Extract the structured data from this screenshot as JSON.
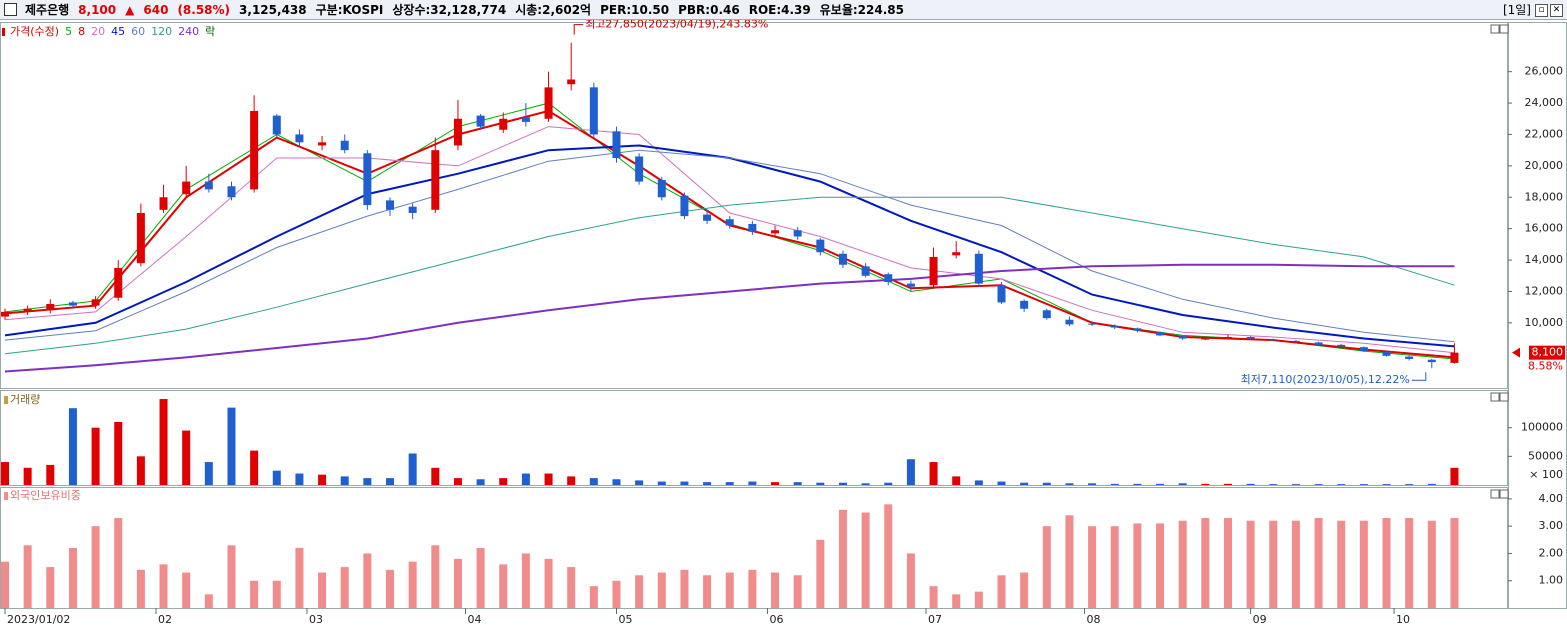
{
  "header": {
    "items": [
      {
        "text": "제주은행",
        "color": "#000000"
      },
      {
        "text": "8,100",
        "color": "#e00000"
      },
      {
        "text": "▲",
        "color": "#e00000"
      },
      {
        "text": "640",
        "color": "#e00000"
      },
      {
        "text": "(8.58%)",
        "color": "#e00000"
      },
      {
        "text": "3,125,438",
        "color": "#000000"
      },
      {
        "text": "구분:KOSPI",
        "color": "#000000"
      },
      {
        "text": "상장수:32,128,774",
        "color": "#000000"
      },
      {
        "text": "시총:2,602억",
        "color": "#000000"
      },
      {
        "text": "PER:10.50",
        "color": "#000000"
      },
      {
        "text": "PBR:0.46",
        "color": "#000000"
      },
      {
        "text": "ROE:4.39",
        "color": "#000000"
      },
      {
        "text": "유보율:224.85",
        "color": "#000000"
      }
    ],
    "period": "[1일]"
  },
  "chart_data": [
    {
      "type": "candlestick",
      "price_label": "가격(수정)",
      "lock_label": "락",
      "up_color": "#e00000",
      "down_color": "#1f5fd0",
      "xlim": [
        0,
        193
      ],
      "x": [
        0,
        3,
        6,
        9,
        12,
        15,
        18,
        21,
        24,
        27,
        30,
        33,
        36,
        39,
        42,
        45,
        48,
        51,
        54,
        57,
        60,
        63,
        66,
        69,
        72,
        75,
        78,
        81,
        84,
        87,
        90,
        93,
        96,
        99,
        102,
        105,
        108,
        111,
        114,
        117,
        120,
        123,
        126,
        129,
        132,
        135,
        138,
        141,
        144,
        147,
        150,
        153,
        156,
        159,
        162,
        165,
        168,
        171,
        174,
        177,
        180,
        183,
        186,
        189,
        192
      ],
      "open": [
        10400,
        10700,
        10800,
        11300,
        11100,
        11600,
        13800,
        17200,
        18200,
        19000,
        18700,
        18500,
        23200,
        22000,
        21300,
        21600,
        20800,
        17800,
        17400,
        17200,
        21300,
        23200,
        22300,
        23100,
        23000,
        25200,
        25000,
        22200,
        20600,
        19100,
        18100,
        16900,
        16600,
        16300,
        15700,
        15900,
        15300,
        14400,
        13600,
        13100,
        12500,
        12400,
        14300,
        14400,
        12400,
        11400,
        10800,
        10200,
        9950,
        9800,
        9650,
        9400,
        9150,
        8950,
        9050,
        9100,
        8950,
        8850,
        8750,
        8600,
        8450,
        8150,
        7850,
        7650,
        7450
      ],
      "high": [
        10900,
        11100,
        11500,
        11400,
        11700,
        14000,
        17600,
        18800,
        20000,
        19500,
        19000,
        24500,
        23300,
        22300,
        21900,
        22000,
        21000,
        18000,
        17600,
        21800,
        24200,
        23300,
        23400,
        24000,
        26000,
        27850,
        25300,
        22500,
        20800,
        19300,
        18300,
        17200,
        16800,
        16500,
        16200,
        16100,
        15400,
        14600,
        13800,
        13200,
        12700,
        14800,
        15200,
        14600,
        12600,
        11500,
        10900,
        10400,
        10100,
        9900,
        9700,
        9450,
        9200,
        9100,
        9250,
        9150,
        9000,
        8900,
        8800,
        8650,
        8500,
        8200,
        7900,
        7700,
        8700
      ],
      "low": [
        10200,
        10500,
        10600,
        10900,
        10900,
        11400,
        13600,
        17000,
        18000,
        18300,
        17800,
        18300,
        21800,
        21200,
        21000,
        20800,
        17200,
        16800,
        16600,
        17000,
        21000,
        22300,
        22100,
        22500,
        22800,
        24800,
        21800,
        20200,
        18800,
        17800,
        16600,
        16300,
        16000,
        15600,
        15500,
        15300,
        14300,
        13500,
        12900,
        12400,
        12000,
        12200,
        14100,
        12300,
        11200,
        10700,
        10200,
        9800,
        9800,
        9600,
        9400,
        9150,
        8900,
        8900,
        9000,
        8950,
        8850,
        8700,
        8550,
        8450,
        8150,
        7850,
        7600,
        7110,
        7400
      ],
      "close": [
        10700,
        10900,
        11200,
        11100,
        11500,
        13500,
        17000,
        18000,
        19000,
        18500,
        18000,
        23500,
        22000,
        21500,
        21500,
        21000,
        17500,
        17200,
        17000,
        21000,
        23000,
        22500,
        23000,
        22800,
        25000,
        25500,
        22000,
        20500,
        19000,
        18000,
        16800,
        16500,
        16200,
        15800,
        15900,
        15500,
        14500,
        13700,
        13000,
        12600,
        12300,
        14200,
        14500,
        12500,
        11300,
        10900,
        10300,
        9900,
        9900,
        9700,
        9500,
        9200,
        9000,
        9000,
        9100,
        9000,
        8900,
        8800,
        8600,
        8500,
        8200,
        7900,
        7700,
        7500,
        8100
      ],
      "series": [
        {
          "name": "5",
          "color": "#00b000",
          "width": 1,
          "x": [
            0,
            12,
            24,
            36,
            48,
            60,
            72,
            84,
            96,
            108,
            120,
            132,
            144,
            156,
            168,
            180,
            192
          ],
          "values": [
            10700,
            11400,
            18500,
            22000,
            19000,
            22500,
            24000,
            19500,
            16300,
            14600,
            12000,
            12800,
            10000,
            9200,
            8900,
            8200,
            7700
          ]
        },
        {
          "name": "8",
          "color": "#e00000",
          "width": 2,
          "x": [
            0,
            12,
            24,
            36,
            48,
            60,
            72,
            84,
            96,
            108,
            120,
            132,
            144,
            156,
            168,
            180,
            192
          ],
          "values": [
            10600,
            11100,
            18000,
            21800,
            19500,
            22000,
            23500,
            20000,
            16200,
            14800,
            12200,
            12400,
            10000,
            9100,
            8900,
            8300,
            7800
          ]
        },
        {
          "name": "20",
          "color": "#d070c0",
          "width": 1,
          "x": [
            0,
            12,
            24,
            36,
            48,
            60,
            72,
            84,
            96,
            108,
            120,
            132,
            144,
            156,
            168,
            180,
            192
          ],
          "values": [
            10200,
            10700,
            15500,
            20500,
            20500,
            20000,
            22500,
            22000,
            17000,
            15500,
            13500,
            12800,
            10800,
            9400,
            9100,
            8700,
            8100
          ]
        },
        {
          "name": "45",
          "color": "#0018c0",
          "width": 2,
          "x": [
            0,
            12,
            24,
            36,
            48,
            60,
            72,
            84,
            96,
            108,
            120,
            132,
            144,
            156,
            168,
            180,
            192
          ],
          "values": [
            9200,
            10000,
            12600,
            15500,
            18200,
            19500,
            21000,
            21300,
            20500,
            19000,
            16500,
            14500,
            11800,
            10500,
            9700,
            9000,
            8500
          ]
        },
        {
          "name": "60",
          "color": "#6080c0",
          "width": 1,
          "x": [
            0,
            12,
            24,
            36,
            48,
            60,
            72,
            84,
            96,
            108,
            120,
            132,
            144,
            156,
            168,
            180,
            192
          ],
          "values": [
            8900,
            9500,
            12000,
            14800,
            16800,
            18500,
            20300,
            21000,
            20500,
            19500,
            17500,
            16200,
            13300,
            11500,
            10300,
            9400,
            8800
          ]
        },
        {
          "name": "120",
          "color": "#30a090",
          "width": 1,
          "x": [
            0,
            12,
            24,
            36,
            48,
            60,
            72,
            84,
            96,
            108,
            120,
            132,
            144,
            156,
            168,
            180,
            192
          ],
          "values": [
            8030,
            8700,
            9600,
            11000,
            12500,
            14000,
            15500,
            16700,
            17500,
            18000,
            18000,
            18000,
            17000,
            16000,
            15000,
            14200,
            12400
          ]
        },
        {
          "name": "240",
          "color": "#8030c0",
          "width": 2,
          "x": [
            0,
            12,
            24,
            36,
            48,
            60,
            72,
            84,
            96,
            108,
            120,
            132,
            144,
            156,
            168,
            180,
            192
          ],
          "values": [
            6900,
            7300,
            7800,
            8400,
            9000,
            10000,
            10800,
            11500,
            12000,
            12500,
            12800,
            13300,
            13600,
            13700,
            13700,
            13600,
            13600
          ]
        }
      ],
      "ylim": [
        5850,
        29100
      ],
      "yticks": [
        {
          "value": 10000,
          "label": "10,000"
        },
        {
          "value": 12000,
          "label": "12,000"
        },
        {
          "value": 14000,
          "label": "14,000"
        },
        {
          "value": 16000,
          "label": "16,000"
        },
        {
          "value": 18000,
          "label": "18,000"
        },
        {
          "value": 20000,
          "label": "20,000"
        },
        {
          "value": 22000,
          "label": "22,000"
        },
        {
          "value": 24000,
          "label": "24,000"
        },
        {
          "value": 26000,
          "label": "26,000"
        }
      ],
      "high_annotation": "최고27,850(2023/04/19),243.83%",
      "low_annotation": "최저7,110(2023/10/05),12.22%",
      "last_label": "8,100",
      "last_change": "8.58%"
    },
    {
      "type": "bar",
      "title": "거래량",
      "unit": "× 100",
      "values": [
        40000,
        30000,
        35000,
        134000,
        100000,
        110000,
        50000,
        150000,
        95000,
        40000,
        135000,
        60000,
        25000,
        20000,
        18000,
        15000,
        12000,
        12000,
        55000,
        30000,
        12000,
        10000,
        12000,
        20000,
        20000,
        15000,
        12000,
        10000,
        8000,
        6000,
        6000,
        5000,
        5000,
        6000,
        5000,
        5000,
        4000,
        4000,
        3000,
        4000,
        45000,
        40000,
        15000,
        8000,
        6000,
        4000,
        4000,
        3000,
        3000,
        2000,
        2000,
        2000,
        3000,
        2000,
        2000,
        2000,
        1500,
        1500,
        1500,
        1500,
        1500,
        1500,
        1500,
        2000,
        30000
      ],
      "ylim": [
        0,
        164000
      ],
      "yticks": [
        50000,
        100000
      ]
    },
    {
      "type": "bar",
      "title": "외국인보유비중",
      "color": "#f08c8c",
      "values": [
        1.7,
        2.3,
        1.5,
        2.2,
        3.0,
        3.3,
        1.4,
        1.6,
        1.3,
        0.5,
        2.3,
        1.0,
        1.0,
        2.2,
        1.3,
        1.5,
        2.0,
        1.4,
        1.7,
        2.3,
        1.8,
        2.2,
        1.6,
        2.0,
        1.8,
        1.5,
        0.8,
        1.0,
        1.2,
        1.3,
        1.4,
        1.2,
        1.3,
        1.4,
        1.3,
        1.2,
        2.5,
        3.6,
        3.5,
        3.8,
        2.0,
        0.8,
        0.5,
        0.6,
        1.2,
        1.3,
        3.0,
        3.4,
        3.0,
        3.0,
        3.1,
        3.1,
        3.2,
        3.3,
        3.3,
        3.2,
        3.2,
        3.2,
        3.3,
        3.2,
        3.2,
        3.3,
        3.3,
        3.2,
        3.3
      ],
      "ylim": [
        0,
        4.4
      ],
      "yticks": [
        {
          "value": 1,
          "label": "1.00"
        },
        {
          "value": 2,
          "label": "2.00"
        },
        {
          "value": 3,
          "label": "3.00"
        },
        {
          "value": 4,
          "label": "4.00"
        }
      ],
      "xticks": [
        {
          "value": 0,
          "label": "2023/01/02"
        },
        {
          "value": 20,
          "label": "02"
        },
        {
          "value": 40,
          "label": "03"
        },
        {
          "value": 61,
          "label": "04"
        },
        {
          "value": 81,
          "label": "05"
        },
        {
          "value": 101,
          "label": "06"
        },
        {
          "value": 122,
          "label": "07"
        },
        {
          "value": 143,
          "label": "08"
        },
        {
          "value": 165,
          "label": "09"
        },
        {
          "value": 184,
          "label": "10"
        }
      ]
    }
  ]
}
